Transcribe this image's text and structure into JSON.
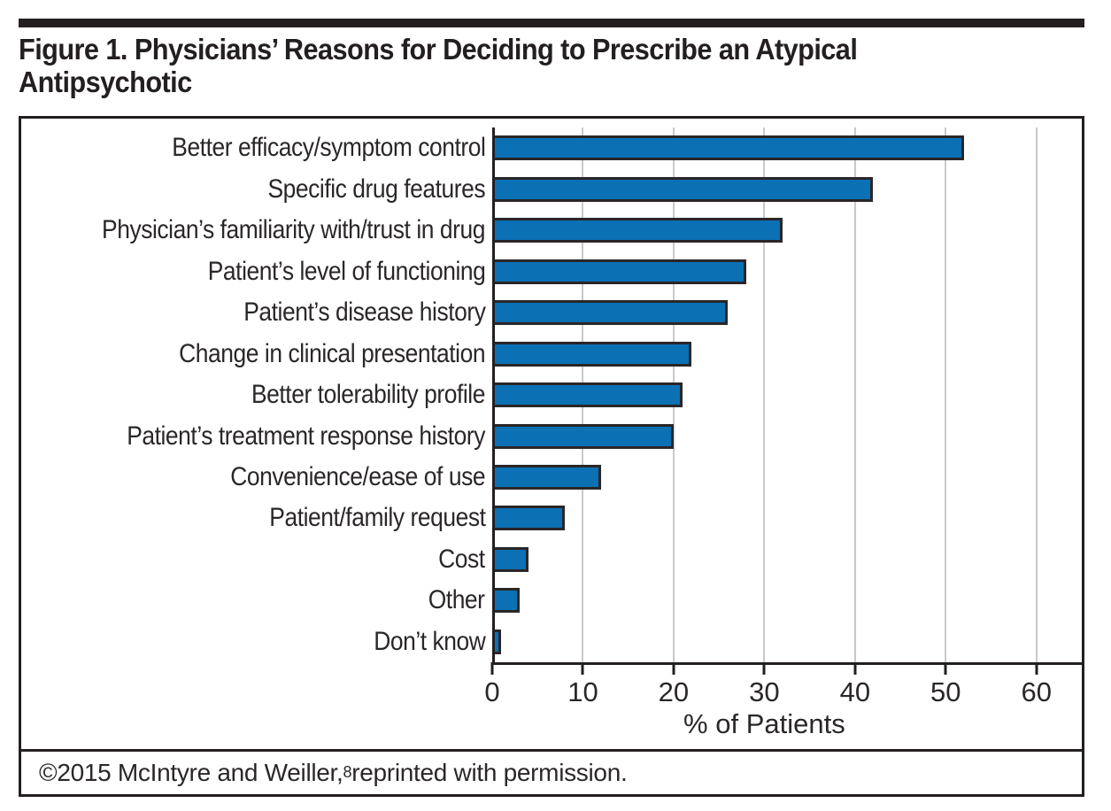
{
  "title": {
    "line1": "Figure 1. Physicians’ Reasons for Deciding to Prescribe an Atypical",
    "line2": "Antipsychotic"
  },
  "footer": {
    "prefix": "©2015 McIntyre and Weiller,",
    "superscript": "8",
    "suffix": " reprinted with permission."
  },
  "chart_data": {
    "type": "bar",
    "orientation": "horizontal",
    "title": "Figure 1. Physicians’ Reasons for Deciding to Prescribe an Atypical Antipsychotic",
    "categories": [
      "Better efficacy/symptom control",
      "Specific drug features",
      "Physician’s familiarity with/trust in drug",
      "Patient’s level of functioning",
      "Patient’s disease history",
      "Change in clinical presentation",
      "Better tolerability profile",
      "Patient’s treatment response history",
      "Convenience/ease of use",
      "Patient/family request",
      "Cost",
      "Other",
      "Don’t know"
    ],
    "values": [
      52,
      42,
      32,
      28,
      26,
      22,
      21,
      20,
      12,
      8,
      4,
      3,
      1
    ],
    "xlabel": "% of Patients",
    "ylabel": "",
    "xlim": [
      0,
      65
    ],
    "xticks": [
      0,
      10,
      20,
      30,
      40,
      50,
      60
    ],
    "grid": true,
    "legend": false,
    "colors": {
      "bar": "#0b70b4",
      "bar_border": "#2a2627",
      "gridline": "#c9c9c9",
      "axis": "#231f20",
      "ink": "#231f20"
    }
  }
}
